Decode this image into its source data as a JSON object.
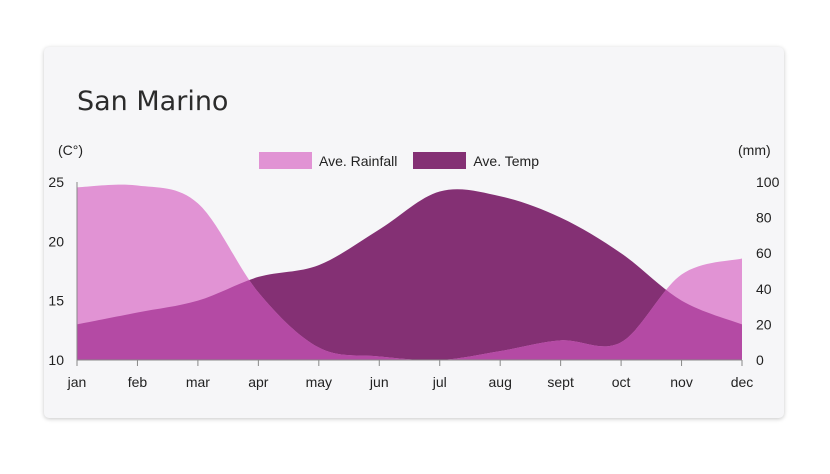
{
  "chart_data": {
    "type": "area",
    "title": "San Marino",
    "left_axis_unit": "(C°)",
    "right_axis_unit": "(mm)",
    "categories": [
      "jan",
      "feb",
      "mar",
      "apr",
      "may",
      "jun",
      "jul",
      "aug",
      "sept",
      "oct",
      "nov",
      "dec"
    ],
    "left_ticks": [
      "25",
      "20",
      "15",
      "10"
    ],
    "right_ticks": [
      "100",
      "80",
      "60",
      "40",
      "20",
      "0"
    ],
    "ylim_left": [
      10,
      25
    ],
    "ylim_right": [
      0,
      100
    ],
    "series": [
      {
        "name": "Ave. Rainfall",
        "axis": "right",
        "color": "#e193d4",
        "values": [
          97,
          98,
          88,
          38,
          7,
          2,
          0,
          5,
          11,
          10,
          48,
          57
        ]
      },
      {
        "name": "Ave. Temp",
        "axis": "left",
        "color": "#843074",
        "values": [
          13,
          14,
          15,
          17,
          18,
          21,
          24.2,
          23.8,
          22,
          19,
          15,
          13
        ]
      }
    ],
    "overlap_color": "#b44aa4",
    "grid": false,
    "legend_position": "top-center"
  }
}
